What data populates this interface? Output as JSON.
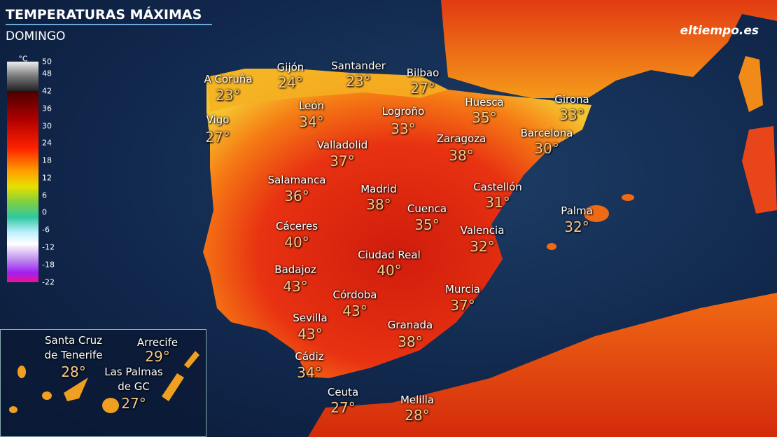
{
  "header": {
    "title": "TEMPERATURAS MÁXIMAS",
    "subtitle": "DOMINGO",
    "logo": "eltiempo.es"
  },
  "legend": {
    "unit": "°C",
    "ticks": [
      50,
      48,
      42,
      36,
      30,
      24,
      18,
      12,
      6,
      0,
      -6,
      -12,
      -18,
      -22
    ]
  },
  "cities": [
    {
      "name": "A Coruña",
      "temp": "23°"
    },
    {
      "name": "Gijón",
      "temp": "24°"
    },
    {
      "name": "Santander",
      "temp": "23°"
    },
    {
      "name": "Bilbao",
      "temp": "27°"
    },
    {
      "name": "Vigo",
      "temp": "27°"
    },
    {
      "name": "León",
      "temp": "34°"
    },
    {
      "name": "Logroño",
      "temp": "33°"
    },
    {
      "name": "Huesca",
      "temp": "35°"
    },
    {
      "name": "Girona",
      "temp": "33°"
    },
    {
      "name": "Zaragoza",
      "temp": "38°"
    },
    {
      "name": "Barcelona",
      "temp": "30°"
    },
    {
      "name": "Valladolid",
      "temp": "37°"
    },
    {
      "name": "Salamanca",
      "temp": "36°"
    },
    {
      "name": "Madrid",
      "temp": "38°"
    },
    {
      "name": "Castellón",
      "temp": "31°"
    },
    {
      "name": "Cuenca",
      "temp": "35°"
    },
    {
      "name": "Palma",
      "temp": "32°"
    },
    {
      "name": "Cáceres",
      "temp": "40°"
    },
    {
      "name": "Valencia",
      "temp": "32°"
    },
    {
      "name": "Ciudad Real",
      "temp": "40°"
    },
    {
      "name": "Badajoz",
      "temp": "43°"
    },
    {
      "name": "Córdoba",
      "temp": "43°"
    },
    {
      "name": "Murcia",
      "temp": "37°"
    },
    {
      "name": "Sevilla",
      "temp": "43°"
    },
    {
      "name": "Granada",
      "temp": "38°"
    },
    {
      "name": "Cádiz",
      "temp": "34°"
    },
    {
      "name": "Ceuta",
      "temp": "27°"
    },
    {
      "name": "Melilla",
      "temp": "28°"
    }
  ],
  "canarias": [
    {
      "name": [
        "Santa Cruz",
        "de Tenerife"
      ],
      "temp": "28°"
    },
    {
      "name": [
        "Arrecife"
      ],
      "temp": "29°"
    },
    {
      "name": [
        "Las Palmas",
        "de GC"
      ],
      "temp": "27°"
    }
  ]
}
